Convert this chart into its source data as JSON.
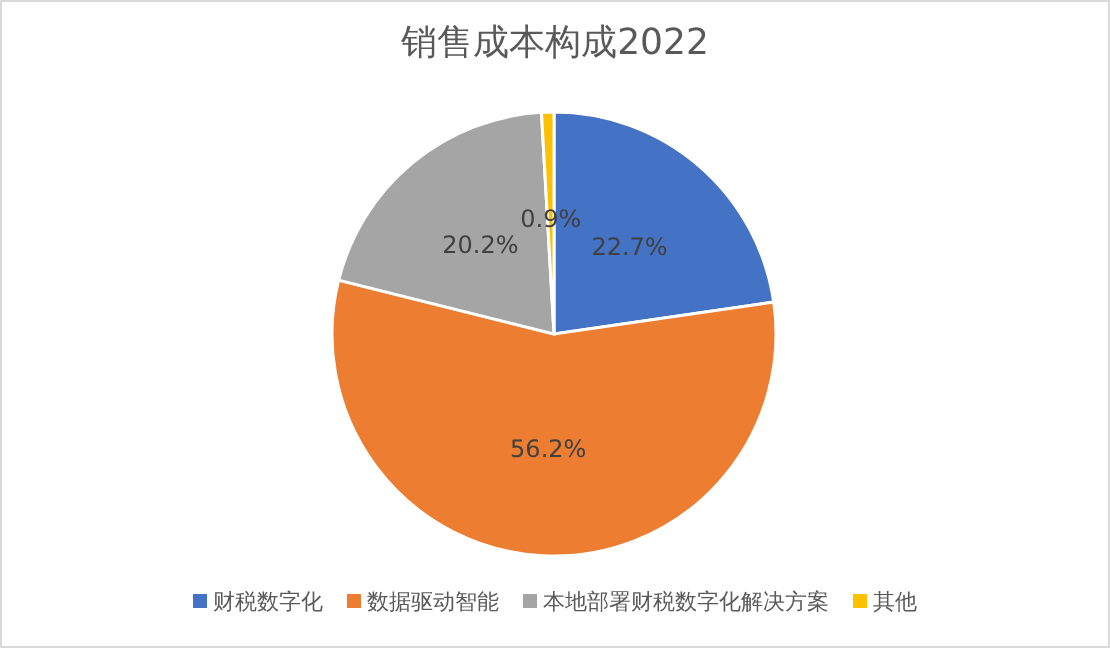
{
  "chart_data": {
    "type": "pie",
    "title": "销售成本构成2022",
    "categories": [
      "财税数字化",
      "数据驱动智能",
      "本地部署财税数字化解决方案",
      "其他"
    ],
    "values": [
      22.7,
      56.2,
      20.2,
      0.9
    ],
    "value_labels": [
      "22.7%",
      "56.2%",
      "20.2%",
      "0.9%"
    ],
    "colors": [
      "#4472c4",
      "#ed7d31",
      "#a5a5a5",
      "#ffc000"
    ],
    "legend": "bottom"
  }
}
